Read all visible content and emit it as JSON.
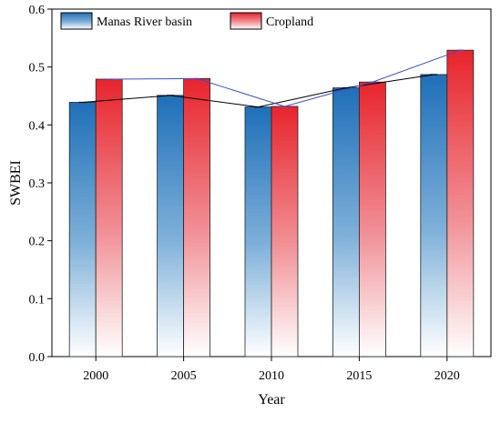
{
  "chart_data": {
    "type": "bar",
    "title": "",
    "xlabel": "Year",
    "ylabel": "SWBEI",
    "categories": [
      "2000",
      "2005",
      "2010",
      "2015",
      "2020"
    ],
    "ylim": [
      0.0,
      0.6
    ],
    "yticks": [
      "0.0",
      "0.1",
      "0.2",
      "0.3",
      "0.4",
      "0.5",
      "0.6"
    ],
    "grid": false,
    "legend_position": "top",
    "series": [
      {
        "name": "Manas River basin",
        "values": [
          0.439,
          0.451,
          0.431,
          0.464,
          0.487
        ],
        "color": "#1f6fb8",
        "line_color": "#000000"
      },
      {
        "name": "Cropland",
        "values": [
          0.479,
          0.48,
          0.432,
          0.474,
          0.529
        ],
        "color": "#e8242c",
        "line_color": "#3a4fd6"
      }
    ]
  }
}
